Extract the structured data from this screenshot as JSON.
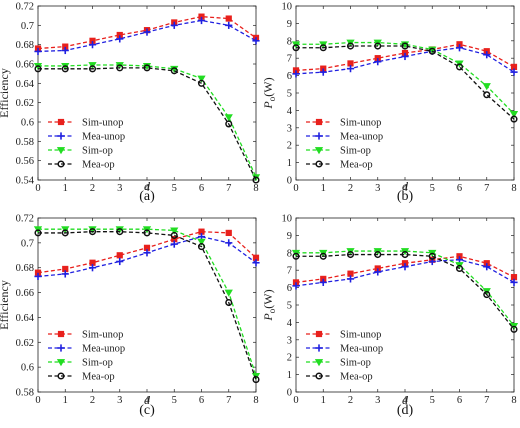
{
  "chart_data": [
    {
      "type": "line",
      "caption": "(a)",
      "xlabel": "d",
      "ylabel": "Efficiency",
      "ylabel_parts": null,
      "x": [
        0,
        1,
        2,
        3,
        4,
        5,
        6,
        7,
        8
      ],
      "xlim": [
        0,
        8
      ],
      "ylim": [
        0.54,
        0.72
      ],
      "yticks": [
        0.54,
        0.56,
        0.58,
        0.6,
        0.62,
        0.64,
        0.66,
        0.68,
        0.7,
        0.72
      ],
      "ytick_labels": [
        "0.54",
        "0.56",
        "0.58",
        "0.6",
        "0.62",
        "0.64",
        "0.66",
        "0.68",
        "0.7",
        "0.72"
      ],
      "legend_position": "lower-left",
      "series": [
        {
          "name": "Sim-unop",
          "color": "#e8201c",
          "marker": "square",
          "values": [
            0.676,
            0.678,
            0.684,
            0.69,
            0.695,
            0.703,
            0.709,
            0.707,
            0.687
          ]
        },
        {
          "name": "Mea-unop",
          "color": "#2020e0",
          "marker": "plus",
          "values": [
            0.673,
            0.674,
            0.68,
            0.686,
            0.693,
            0.7,
            0.705,
            0.7,
            0.684
          ]
        },
        {
          "name": "Sim-op",
          "color": "#22dd22",
          "marker": "triangle-down",
          "values": [
            0.658,
            0.658,
            0.659,
            0.659,
            0.658,
            0.655,
            0.645,
            0.605,
            0.543
          ]
        },
        {
          "name": "Mea-op",
          "color": "#111111",
          "marker": "circle",
          "values": [
            0.655,
            0.655,
            0.655,
            0.656,
            0.656,
            0.653,
            0.64,
            0.598,
            0.54
          ]
        }
      ]
    },
    {
      "type": "line",
      "caption": "(b)",
      "xlabel": "d",
      "ylabel": null,
      "ylabel_parts": {
        "main": "P",
        "sub": "o",
        "tail": "(W)"
      },
      "x": [
        0,
        1,
        2,
        3,
        4,
        5,
        6,
        7,
        8
      ],
      "xlim": [
        0,
        8
      ],
      "ylim": [
        0,
        10
      ],
      "yticks": [
        0,
        1,
        2,
        3,
        4,
        5,
        6,
        7,
        8,
        9,
        10
      ],
      "ytick_labels": [
        "0",
        "1",
        "2",
        "3",
        "4",
        "5",
        "6",
        "7",
        "8",
        "9",
        "10"
      ],
      "legend_position": "lower-left",
      "series": [
        {
          "name": "Sim-unop",
          "color": "#e8201c",
          "marker": "square",
          "values": [
            6.3,
            6.4,
            6.7,
            7.0,
            7.3,
            7.5,
            7.8,
            7.4,
            6.5
          ]
        },
        {
          "name": "Mea-unop",
          "color": "#2020e0",
          "marker": "plus",
          "values": [
            6.1,
            6.2,
            6.4,
            6.8,
            7.1,
            7.4,
            7.6,
            7.2,
            6.2
          ]
        },
        {
          "name": "Sim-op",
          "color": "#22dd22",
          "marker": "triangle-down",
          "values": [
            7.8,
            7.8,
            7.9,
            7.9,
            7.8,
            7.5,
            6.7,
            5.4,
            3.8
          ]
        },
        {
          "name": "Mea-op",
          "color": "#111111",
          "marker": "circle",
          "values": [
            7.6,
            7.6,
            7.7,
            7.7,
            7.7,
            7.4,
            6.5,
            4.9,
            3.5
          ]
        }
      ]
    },
    {
      "type": "line",
      "caption": "(c)",
      "xlabel": "d",
      "ylabel": "Efficiency",
      "ylabel_parts": null,
      "x": [
        0,
        1,
        2,
        3,
        4,
        5,
        6,
        7,
        8
      ],
      "xlim": [
        0,
        8
      ],
      "ylim": [
        0.58,
        0.72
      ],
      "yticks": [
        0.58,
        0.6,
        0.62,
        0.64,
        0.66,
        0.68,
        0.7,
        0.72
      ],
      "ytick_labels": [
        "0.58",
        "0.6",
        "0.62",
        "0.64",
        "0.66",
        "0.68",
        "0.7",
        "0.72"
      ],
      "legend_position": "lower-left",
      "series": [
        {
          "name": "Sim-unop",
          "color": "#e8201c",
          "marker": "square",
          "values": [
            0.676,
            0.679,
            0.684,
            0.69,
            0.696,
            0.703,
            0.709,
            0.708,
            0.688
          ]
        },
        {
          "name": "Mea-unop",
          "color": "#2020e0",
          "marker": "plus",
          "values": [
            0.673,
            0.675,
            0.68,
            0.685,
            0.692,
            0.699,
            0.705,
            0.7,
            0.684
          ]
        },
        {
          "name": "Sim-op",
          "color": "#22dd22",
          "marker": "triangle-down",
          "values": [
            0.711,
            0.711,
            0.711,
            0.711,
            0.711,
            0.71,
            0.701,
            0.66,
            0.593
          ]
        },
        {
          "name": "Mea-op",
          "color": "#111111",
          "marker": "circle",
          "values": [
            0.708,
            0.708,
            0.709,
            0.709,
            0.708,
            0.706,
            0.697,
            0.652,
            0.59
          ]
        }
      ]
    },
    {
      "type": "line",
      "caption": "(d)",
      "xlabel": "d",
      "ylabel": null,
      "ylabel_parts": {
        "main": "P",
        "sub": "o",
        "tail": "(W)"
      },
      "x": [
        0,
        1,
        2,
        3,
        4,
        5,
        6,
        7,
        8
      ],
      "xlim": [
        0,
        8
      ],
      "ylim": [
        0,
        10
      ],
      "yticks": [
        0,
        1,
        2,
        3,
        4,
        5,
        6,
        7,
        8,
        9,
        10
      ],
      "ytick_labels": [
        "0",
        "1",
        "2",
        "3",
        "4",
        "5",
        "6",
        "7",
        "8",
        "9",
        "10"
      ],
      "legend_position": "lower-left",
      "series": [
        {
          "name": "Sim-unop",
          "color": "#e8201c",
          "marker": "square",
          "values": [
            6.3,
            6.5,
            6.8,
            7.1,
            7.4,
            7.6,
            7.8,
            7.4,
            6.6
          ]
        },
        {
          "name": "Mea-unop",
          "color": "#2020e0",
          "marker": "plus",
          "values": [
            6.1,
            6.3,
            6.5,
            6.9,
            7.2,
            7.5,
            7.6,
            7.2,
            6.3
          ]
        },
        {
          "name": "Sim-op",
          "color": "#22dd22",
          "marker": "triangle-down",
          "values": [
            8.0,
            8.0,
            8.1,
            8.1,
            8.1,
            8.0,
            7.3,
            5.8,
            3.8
          ]
        },
        {
          "name": "Mea-op",
          "color": "#111111",
          "marker": "circle",
          "values": [
            7.8,
            7.8,
            7.9,
            7.9,
            7.9,
            7.8,
            7.1,
            5.6,
            3.6
          ]
        }
      ]
    }
  ]
}
